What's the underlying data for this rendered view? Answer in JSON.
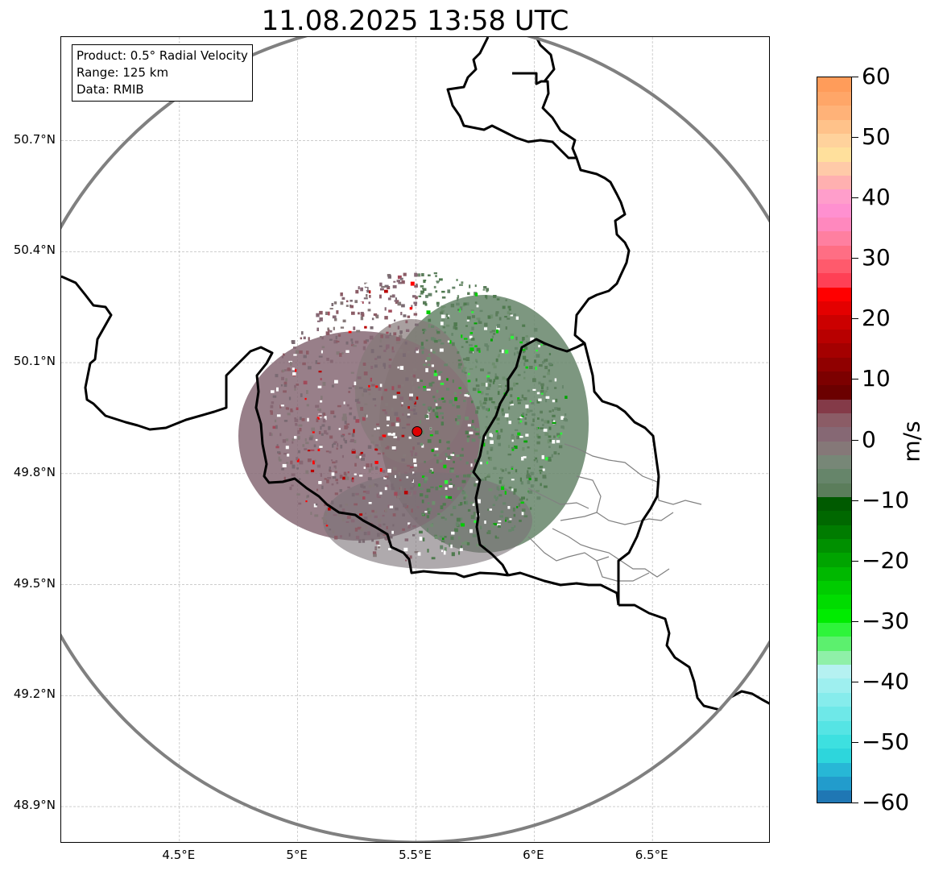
{
  "title": "11.08.2025 13:58 UTC",
  "info": {
    "product": "Product: 0.5° Radial Velocity",
    "range": "Range: 125 km",
    "data": "Data: RMIB"
  },
  "map": {
    "lon_min": 4.0,
    "lon_max": 7.0,
    "lat_min": 48.8,
    "lat_max": 50.98,
    "lat_ticks": [
      {
        "value": 50.7,
        "label": "50.7°N"
      },
      {
        "value": 50.4,
        "label": "50.4°N"
      },
      {
        "value": 50.1,
        "label": "50.1°N"
      },
      {
        "value": 49.8,
        "label": "49.8°N"
      },
      {
        "value": 49.5,
        "label": "49.5°N"
      },
      {
        "value": 49.2,
        "label": "49.2°N"
      },
      {
        "value": 48.9,
        "label": "48.9°N"
      }
    ],
    "lon_ticks": [
      {
        "value": 4.5,
        "label": "4.5°E"
      },
      {
        "value": 5.0,
        "label": "5°E"
      },
      {
        "value": 5.5,
        "label": "5.5°E"
      },
      {
        "value": 6.0,
        "label": "6°E"
      },
      {
        "value": 6.5,
        "label": "6.5°E"
      }
    ],
    "radar_site": {
      "lon": 5.505,
      "lat": 49.914,
      "color": "#e00000"
    },
    "range_ring_color": "#808080",
    "border_color": "#000000",
    "subdivision_color": "#808080",
    "grid": true
  },
  "colorbar": {
    "unit": "m/s",
    "min": -60,
    "max": 60,
    "ticks": [
      {
        "value": 60,
        "label": "60"
      },
      {
        "value": 50,
        "label": "50"
      },
      {
        "value": 40,
        "label": "40"
      },
      {
        "value": 30,
        "label": "30"
      },
      {
        "value": 20,
        "label": "20"
      },
      {
        "value": 10,
        "label": "10"
      },
      {
        "value": 0,
        "label": "0"
      },
      {
        "value": -10,
        "label": "−10"
      },
      {
        "value": -20,
        "label": "−20"
      },
      {
        "value": -30,
        "label": "−30"
      },
      {
        "value": -40,
        "label": "−40"
      },
      {
        "value": -50,
        "label": "−50"
      },
      {
        "value": -60,
        "label": "−60"
      }
    ],
    "colors_bottom_to_top": [
      "#1f77b4",
      "#229ccc",
      "#27b7d6",
      "#2dd6dc",
      "#3de0e0",
      "#55e4e4",
      "#6ee8e8",
      "#86ecec",
      "#9eefef",
      "#b5f1f1",
      "#8ff0a8",
      "#5cf06e",
      "#2ef43a",
      "#00ec00",
      "#00dc00",
      "#00cc00",
      "#00b800",
      "#00a400",
      "#009000",
      "#007c00",
      "#006800",
      "#005a00",
      "#5b7d5b",
      "#66856a",
      "#778777",
      "#857878",
      "#866874",
      "#8b5c66",
      "#843a48",
      "#6b0000",
      "#7c0000",
      "#900000",
      "#a40000",
      "#b80000",
      "#cc0000",
      "#e40000",
      "#ff0000",
      "#ff4055",
      "#ff5a6c",
      "#ff6e84",
      "#ff7fa0",
      "#ff88be",
      "#ff90d0",
      "#ff9ecb",
      "#ffb0b0",
      "#ffcaa8",
      "#ffe09c",
      "#ffd29c",
      "#ffc28a",
      "#ffb278",
      "#ffa668",
      "#ff9c5a"
    ]
  }
}
